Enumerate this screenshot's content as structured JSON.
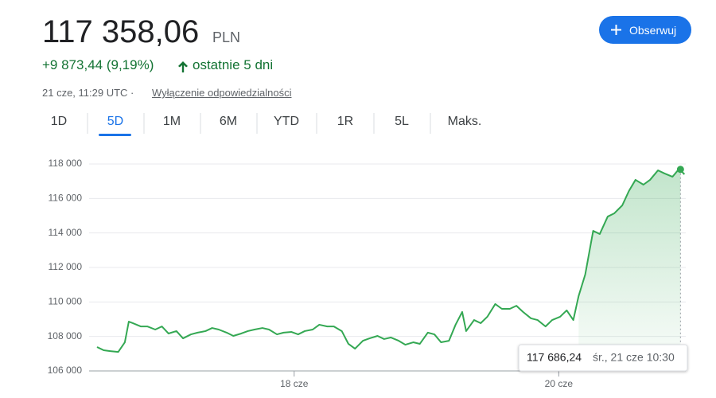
{
  "header": {
    "price": "117 358,06",
    "currency": "PLN",
    "change": "+9 873,44 (9,19%)",
    "period": "ostatnie 5 dni",
    "timestamp": "21 cze, 11:29 UTC ·",
    "disclaimer": "Wyłączenie odpowiedzialności",
    "follow_button": "Obserwuj"
  },
  "tabs": [
    "1D",
    "5D",
    "1M",
    "6M",
    "YTD",
    "1R",
    "5L",
    "Maks."
  ],
  "chart_data": {
    "type": "line",
    "color": "#34a853",
    "grid": true,
    "x": [
      16.51,
      16.56,
      16.61,
      16.67,
      16.72,
      16.75,
      16.78,
      16.84,
      16.89,
      16.95,
      17.0,
      17.05,
      17.11,
      17.16,
      17.22,
      17.27,
      17.33,
      17.38,
      17.43,
      17.49,
      17.54,
      17.6,
      17.65,
      17.7,
      17.76,
      17.81,
      17.87,
      17.92,
      17.98,
      18.03,
      18.08,
      18.14,
      18.19,
      18.25,
      18.3,
      18.36,
      18.41,
      18.46,
      18.52,
      18.57,
      18.63,
      18.68,
      18.73,
      18.79,
      18.84,
      18.9,
      18.95,
      19.01,
      19.06,
      19.11,
      19.17,
      19.22,
      19.27,
      19.3,
      19.36,
      19.41,
      19.46,
      19.52,
      19.57,
      19.63,
      19.68,
      19.73,
      19.79,
      19.84,
      19.9,
      19.95,
      20.01,
      20.06,
      20.11,
      20.15,
      20.2,
      20.26,
      20.31,
      20.37,
      20.42,
      20.48,
      20.53,
      20.58,
      20.64,
      20.69,
      20.75,
      20.8,
      20.86,
      20.91,
      20.95
    ],
    "values": [
      107385,
      107200,
      107150,
      107100,
      107660,
      108860,
      108770,
      108580,
      108580,
      108400,
      108580,
      108170,
      108310,
      107890,
      108120,
      108220,
      108310,
      108490,
      108400,
      108220,
      108030,
      108170,
      108310,
      108400,
      108490,
      108400,
      108120,
      108220,
      108260,
      108120,
      108310,
      108400,
      108680,
      108580,
      108580,
      108310,
      107570,
      107290,
      107750,
      107890,
      108030,
      107850,
      107940,
      107750,
      107520,
      107660,
      107570,
      108220,
      108120,
      107660,
      107750,
      108680,
      109420,
      108310,
      108950,
      108770,
      109140,
      109880,
      109600,
      109600,
      109780,
      109420,
      109050,
      108950,
      108580,
      108950,
      109140,
      109510,
      108950,
      110340,
      111590,
      114120,
      113940,
      114950,
      115140,
      115600,
      116430,
      117080,
      116800,
      117080,
      117630,
      117450,
      117260,
      117720,
      117400
    ],
    "xlim": [
      16.45,
      20.96
    ],
    "ylim": [
      106000,
      118000
    ],
    "yticks": [
      {
        "value": 106000,
        "label": "106 000"
      },
      {
        "value": 108000,
        "label": "108 000"
      },
      {
        "value": 110000,
        "label": "110 000"
      },
      {
        "value": 112000,
        "label": "112 000"
      },
      {
        "value": 114000,
        "label": "114 000"
      },
      {
        "value": 116000,
        "label": "116 000"
      },
      {
        "value": 118000,
        "label": "118 000"
      }
    ],
    "xticks": [
      {
        "value": 18,
        "label": "18 cze"
      },
      {
        "value": 20,
        "label": "20 cze"
      }
    ],
    "highlight": {
      "x": 20.92,
      "value": 117686.24,
      "value_label": "117 686,24",
      "label": "śr., 21 cze 10:30"
    }
  }
}
